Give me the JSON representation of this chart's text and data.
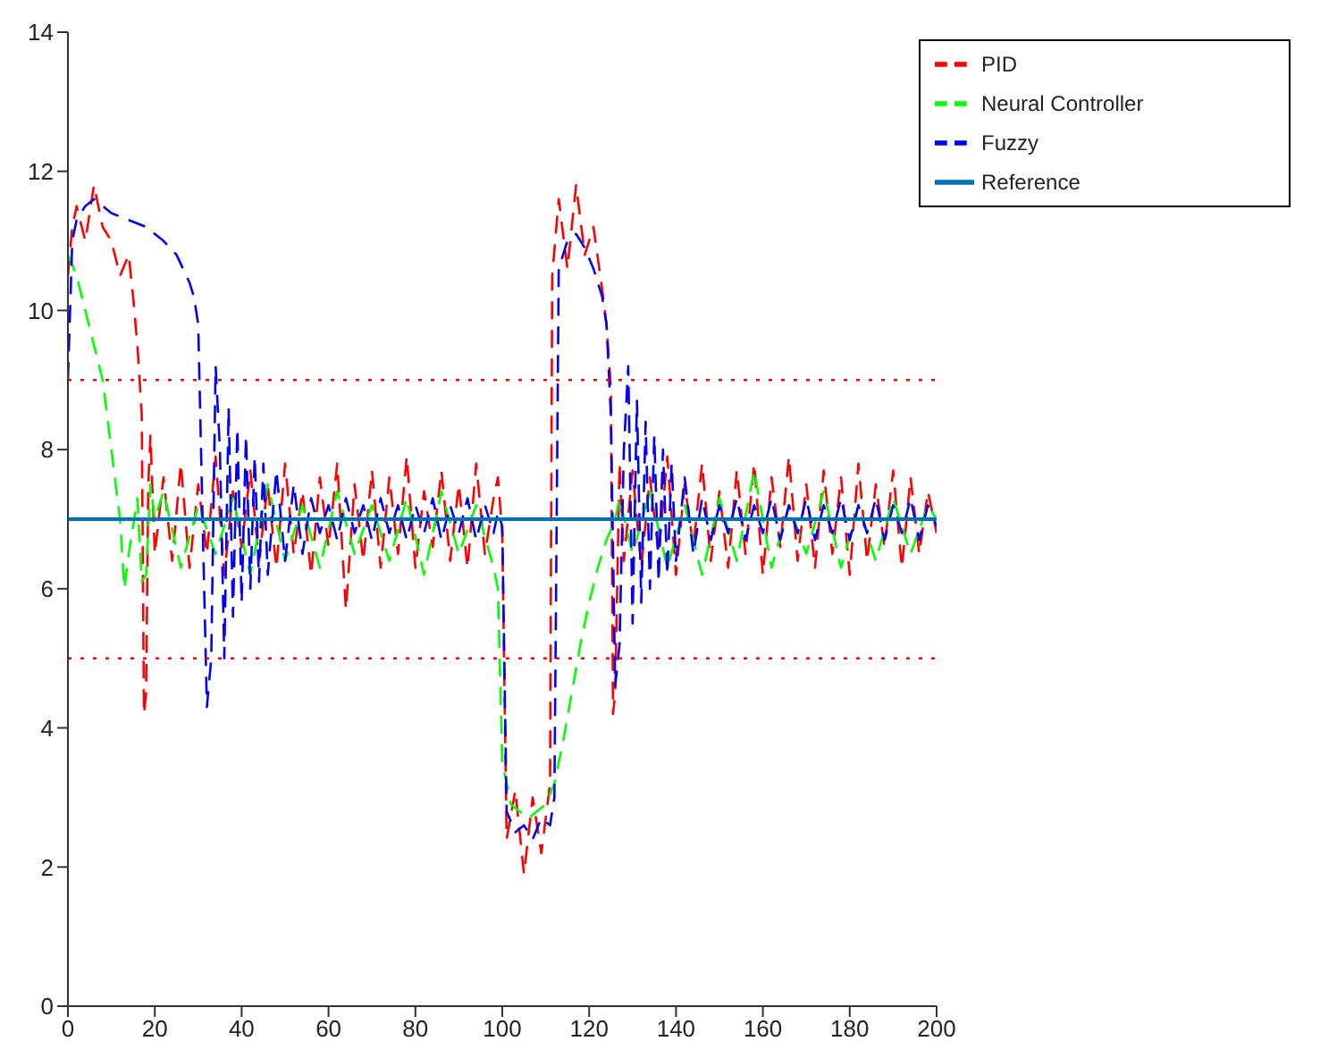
{
  "chart_data": {
    "type": "line",
    "xlim": [
      0,
      200
    ],
    "xticks": [
      0,
      20,
      40,
      60,
      80,
      100,
      120,
      140,
      160,
      180,
      200
    ],
    "ylim": [
      0,
      14
    ],
    "yticks": [
      0,
      2,
      4,
      6,
      8,
      10,
      12,
      14
    ],
    "legend": "top right",
    "marker": "none",
    "series": [
      {
        "name": "PID",
        "color": "#ff0000",
        "line_style": "dashed",
        "x": [
          0,
          1,
          2,
          4,
          6,
          8,
          10,
          12,
          14,
          15,
          16,
          17,
          17.5,
          18,
          18.5,
          19,
          20,
          22,
          24,
          26,
          28,
          30,
          32,
          34,
          36,
          38,
          40,
          42,
          44,
          46,
          48,
          50,
          52,
          54,
          56,
          58,
          60,
          62,
          64,
          66,
          68,
          70,
          72,
          74,
          76,
          78,
          80,
          82,
          84,
          86,
          88,
          90,
          92,
          94,
          96,
          98,
          99,
          100,
          101,
          103,
          105,
          107,
          109,
          111,
          111.5,
          113,
          115,
          117,
          119,
          121,
          123,
          124,
          125,
          125.5,
          126,
          127,
          128,
          130,
          132,
          134,
          136,
          138,
          140,
          142,
          144,
          146,
          148,
          150,
          152,
          154,
          156,
          158,
          160,
          162,
          164,
          166,
          168,
          170,
          172,
          174,
          176,
          178,
          180,
          182,
          184,
          186,
          188,
          190,
          192,
          194,
          196,
          198,
          200
        ],
        "values": [
          10.5,
          11.2,
          11.5,
          11.0,
          11.8,
          11.2,
          11.0,
          10.5,
          10.8,
          10.2,
          9.5,
          8.5,
          4.2,
          4.5,
          7.5,
          8.2,
          6.5,
          7.6,
          6.4,
          7.8,
          6.3,
          7.5,
          6.5,
          7.9,
          6.2,
          7.4,
          6.6,
          7.7,
          6.4,
          7.5,
          6.3,
          7.8,
          6.5,
          7.4,
          6.2,
          7.6,
          6.6,
          7.8,
          5.7,
          7.5,
          6.4,
          7.7,
          6.3,
          7.6,
          6.5,
          7.9,
          6.3,
          7.4,
          6.6,
          7.7,
          6.4,
          7.5,
          6.3,
          7.8,
          6.5,
          7.3,
          7.6,
          6.8,
          2.4,
          3.1,
          1.9,
          3.0,
          2.2,
          3.2,
          10.5,
          11.6,
          10.6,
          11.8,
          10.8,
          11.2,
          10.3,
          9.8,
          8.9,
          4.2,
          4.5,
          7.8,
          6.4,
          7.7,
          6.3,
          7.6,
          6.5,
          7.9,
          6.2,
          7.5,
          6.6,
          7.8,
          6.4,
          7.4,
          6.3,
          7.7,
          6.5,
          7.8,
          6.2,
          7.6,
          6.6,
          7.9,
          6.4,
          7.5,
          6.3,
          7.7,
          6.5,
          7.6,
          6.2,
          7.8,
          6.4,
          7.5,
          6.6,
          7.7,
          6.3,
          7.6,
          6.5,
          7.4,
          6.8
        ]
      },
      {
        "name": "Neural Controller",
        "color": "#00ff00",
        "line_style": "dashed",
        "x": [
          0,
          2,
          4,
          6,
          8,
          10,
          12,
          13,
          14,
          16,
          17,
          18,
          19,
          20,
          22,
          26,
          30,
          34,
          38,
          42,
          46,
          50,
          54,
          58,
          62,
          66,
          70,
          74,
          78,
          82,
          86,
          90,
          94,
          98,
          99,
          100,
          102,
          104,
          106,
          108,
          110,
          112,
          114,
          116,
          118,
          120,
          122,
          124,
          126,
          127,
          130,
          134,
          138,
          142,
          146,
          150,
          154,
          158,
          162,
          166,
          170,
          174,
          178,
          182,
          186,
          190,
          194,
          198,
          200
        ],
        "values": [
          10.8,
          10.5,
          10,
          9.5,
          9,
          8,
          7,
          6,
          6.5,
          7.3,
          6.1,
          6.2,
          7.5,
          7.0,
          7.4,
          6.3,
          7.2,
          6.5,
          7.3,
          6.2,
          7.5,
          6.4,
          7.2,
          6.3,
          7.4,
          6.5,
          7.2,
          6.4,
          7.3,
          6.2,
          7.4,
          6.5,
          7.2,
          6.3,
          6.0,
          3.5,
          2.9,
          2.8,
          2.7,
          2.8,
          2.9,
          3.2,
          3.8,
          4.5,
          5.2,
          5.8,
          6.3,
          6.7,
          7.0,
          7.3,
          6.5,
          7.4,
          6.3,
          7.2,
          6.2,
          7.3,
          6.4,
          7.7,
          6.3,
          7.2,
          6.5,
          7.4,
          6.3,
          7.2,
          6.4,
          7.3,
          6.5,
          7.2,
          7.0
        ]
      },
      {
        "name": "Fuzzy",
        "color": "#0000ff",
        "line_style": "dashed",
        "x": [
          0,
          1,
          2,
          4,
          6,
          8,
          10,
          14,
          18,
          22,
          25,
          28,
          29,
          30,
          31,
          32,
          33,
          34,
          35,
          36,
          37,
          38,
          39,
          40,
          41,
          42,
          43,
          44,
          45,
          46,
          48,
          50,
          52,
          54,
          56,
          58,
          60,
          62,
          64,
          66,
          68,
          70,
          72,
          74,
          76,
          78,
          80,
          82,
          84,
          86,
          88,
          90,
          92,
          94,
          96,
          98,
          99,
          100,
          101,
          103,
          105,
          107,
          109,
          111,
          112,
          113,
          115,
          117,
          119,
          121,
          123,
          124,
          125,
          126,
          127,
          128,
          129,
          130,
          131,
          132,
          133,
          134,
          135,
          136,
          137,
          138,
          139,
          140,
          142,
          144,
          146,
          148,
          150,
          152,
          154,
          156,
          158,
          160,
          162,
          164,
          166,
          168,
          170,
          172,
          174,
          176,
          178,
          180,
          182,
          184,
          186,
          188,
          190,
          192,
          194,
          196,
          198,
          200
        ],
        "values": [
          9,
          11,
          11.3,
          11.5,
          11.6,
          11.5,
          11.4,
          11.3,
          11.2,
          11.0,
          10.8,
          10.4,
          10.2,
          9.8,
          7.0,
          4.3,
          5.0,
          9.2,
          8.0,
          5.0,
          8.6,
          5.6,
          8.3,
          5.8,
          8.2,
          6.0,
          7.9,
          6.1,
          7.8,
          6.2,
          7.7,
          6.4,
          7.5,
          6.5,
          7.3,
          6.8,
          7.2,
          6.7,
          7.3,
          6.8,
          7.2,
          6.7,
          7.3,
          6.8,
          7.2,
          6.7,
          7.2,
          6.8,
          7.3,
          6.7,
          7.2,
          6.8,
          7.3,
          6.7,
          7.2,
          6.8,
          7.1,
          6.9,
          2.8,
          2.5,
          2.6,
          2.4,
          2.7,
          2.6,
          3.0,
          10.6,
          11.0,
          11.1,
          10.9,
          10.6,
          10.2,
          9.8,
          8.5,
          4.6,
          5.2,
          8.0,
          9.2,
          5.5,
          8.7,
          5.8,
          8.4,
          6.0,
          8.2,
          6.1,
          8.0,
          6.2,
          7.8,
          6.4,
          7.6,
          6.5,
          7.3,
          6.7,
          7.2,
          6.8,
          7.3,
          6.7,
          7.2,
          6.8,
          7.3,
          6.7,
          7.2,
          6.8,
          7.3,
          6.7,
          7.2,
          6.8,
          7.3,
          6.7,
          7.2,
          6.8,
          7.3,
          6.7,
          7.2,
          6.8,
          7.3,
          6.7,
          7.2,
          6.9
        ]
      },
      {
        "name": "Reference",
        "color": "#0072bd",
        "line_style": "solid",
        "x": [
          0,
          200
        ],
        "values": [
          7,
          7
        ]
      }
    ],
    "ref_lines": [
      {
        "axis": "y",
        "value": 5,
        "color": "#ff0000",
        "line_style": "dotted"
      },
      {
        "axis": "y",
        "value": 9,
        "color": "#ff0000",
        "line_style": "dotted"
      }
    ]
  }
}
